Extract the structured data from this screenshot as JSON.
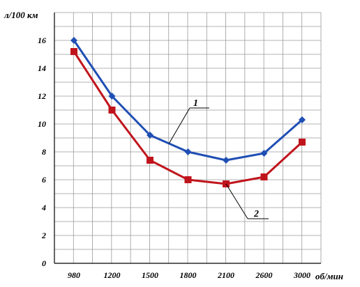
{
  "chart_data": {
    "type": "line",
    "title": "",
    "ylabel": "л/100 км",
    "xlabel": "об/мин",
    "categories": [
      "980",
      "1200",
      "1500",
      "1800",
      "2100",
      "2600",
      "3000"
    ],
    "y_ticks": [
      "0",
      "2",
      "4",
      "6",
      "8",
      "10",
      "12",
      "14",
      "16"
    ],
    "ylim": [
      0,
      18
    ],
    "grid": true,
    "legend": "none",
    "series": [
      {
        "name": "1",
        "color": "#1f4fb4",
        "marker": "diamond",
        "values": [
          16.0,
          12.0,
          9.2,
          8.0,
          7.4,
          7.9,
          10.3
        ]
      },
      {
        "name": "2",
        "color": "#c0141c",
        "marker": "square",
        "values": [
          15.2,
          11.0,
          7.4,
          6.0,
          5.7,
          6.2,
          8.7
        ]
      }
    ]
  }
}
